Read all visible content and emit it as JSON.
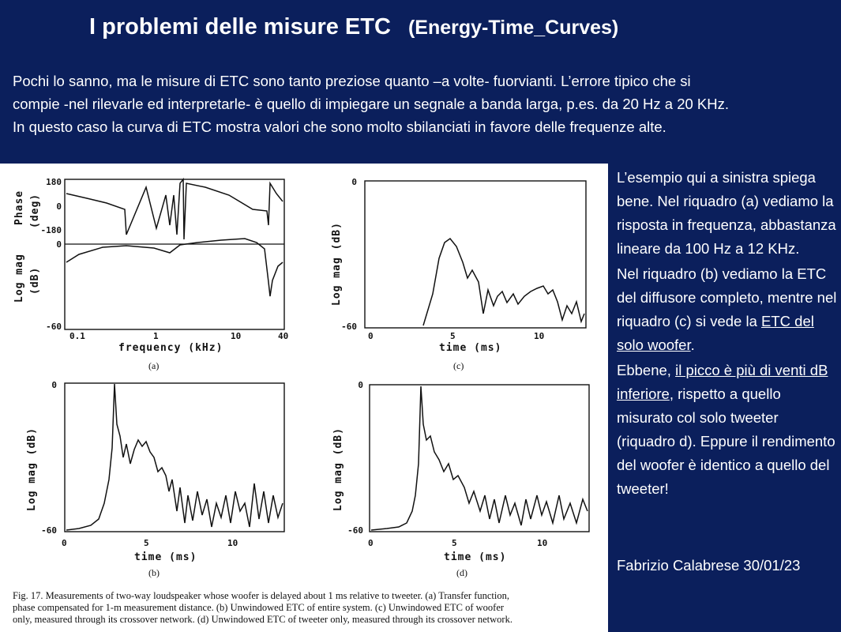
{
  "header": {
    "title": "I problemi delle misure ETC",
    "subtitle": "(Energy-Time_Curves)"
  },
  "intro": [
    "Pochi lo sanno, ma le misure di ETC sono tanto preziose quanto –a volte- fuorvianti. L’errore tipico che si",
    "compie -nel rilevarle ed interpretarle- è quello di impiegare un segnale a banda larga, p.es. da 20 Hz a 20 KHz.",
    "In questo caso la curva di ETC mostra valori che sono molto sbilanciati in favore delle frequenze alte."
  ],
  "sidebar": {
    "p1": "L’esempio qui a sinistra spiega bene. Nel riquadro (a) vediamo la risposta in frequenza, abbastanza lineare da 100 Hz a 12 KHz.",
    "p2_pre": "Nel riquadro (b) vediamo la ETC del diffusore completo, mentre nel riquadro (c)  si vede la ",
    "p2_link": "ETC del solo woofer",
    "p2_post": ".",
    "p3_pre": "Ebbene, ",
    "p3_link": "il picco è più di venti dB inferiore",
    "p3_post": ", rispetto a quello misurato col solo tweeter (riquadro d). Eppure il rendimento del woofer è identico a quello del tweeter!",
    "author": "Fabrizio Calabrese 30/01/23"
  },
  "figure": {
    "panel_a": {
      "phase_label": "Phase",
      "phase_unit": "(deg)",
      "mag_label": "Log mag",
      "mag_unit": "(dB)",
      "y_ticks_phase": [
        "180",
        "0",
        "-180"
      ],
      "y_ticks_mag": [
        "0",
        "-60"
      ],
      "x_ticks": [
        "0.1",
        "1",
        "10",
        "40"
      ],
      "x_label": "frequency (kHz)",
      "tag": "(a)"
    },
    "panel_b": {
      "y_label": "Log mag (dB)",
      "y_ticks": [
        "0",
        "-60"
      ],
      "x_ticks": [
        "0",
        "5",
        "10"
      ],
      "x_label": "time (ms)",
      "tag": "(b)"
    },
    "panel_c": {
      "y_label": "Log mag (dB)",
      "y_ticks": [
        "0",
        "-60"
      ],
      "x_ticks": [
        "0",
        "5",
        "10"
      ],
      "x_label": "time (ms)",
      "tag": "(c)"
    },
    "panel_d": {
      "y_label": "Log mag (dB)",
      "y_ticks": [
        "0",
        "-60"
      ],
      "x_ticks": [
        "0",
        "5",
        "10"
      ],
      "x_label": "time (ms)",
      "tag": "(d)"
    },
    "caption": [
      "Fig. 17. Measurements of two-way loudspeaker whose woofer is delayed about 1 ms relative to tweeter. (a) Transfer function,",
      "phase compensated for 1-m measurement distance. (b) Unwindowed ETC of entire system. (c) Unwindowed ETC of woofer",
      "only, measured through its crossover network. (d) Unwindowed ETC of tweeter only, measured through its crossover network."
    ]
  }
}
